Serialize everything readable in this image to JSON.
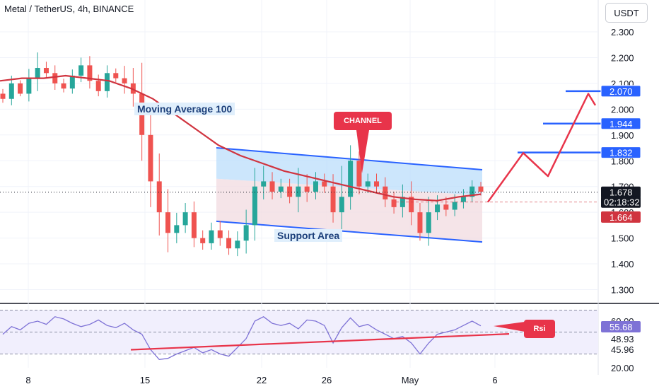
{
  "header": {
    "title": "Metal / TetherUS, 4h, BINANCE",
    "unit_button": "USDT"
  },
  "annotations": {
    "moving_average": "Moving Average 100",
    "channel": "CHANNEL",
    "support": "Support Area",
    "rsi": "Rsi"
  },
  "colors": {
    "up": "#26a69a",
    "down": "#ef5350",
    "ma": "#d0343f",
    "channel": "#2962ff",
    "target": "#2962ff",
    "arrow": "#e8344a",
    "rsi_line": "#7e72d6",
    "rsi_band": "#c9c3f5"
  },
  "chart_data": [
    {
      "type": "candlestick",
      "title": "Metal / TetherUS, 4h, BINANCE",
      "ylim": [
        1.22,
        2.42
      ],
      "y_ticks": [
        "2.300",
        "2.200",
        "2.100",
        "2.000",
        "1.900",
        "1.800",
        "1.700",
        "1.600",
        "1.500",
        "1.400",
        "1.300"
      ],
      "x_ticks": [
        "8",
        "15",
        "22",
        "26",
        "May",
        "6"
      ],
      "price_labels": [
        {
          "text": "2.070",
          "kind": "target"
        },
        {
          "text": "1.944",
          "kind": "target"
        },
        {
          "text": "1.832",
          "kind": "target"
        },
        {
          "text": "1.678",
          "kind": "last"
        },
        {
          "text": "02:18:32",
          "kind": "timer"
        },
        {
          "text": "1.664",
          "kind": "ma"
        }
      ],
      "targets": [
        2.07,
        1.944,
        1.832
      ],
      "last_price": 1.678,
      "ma_value": 1.664,
      "channel": {
        "upper": [
          1.85,
          1.765
        ],
        "lower": [
          1.565,
          1.485
        ]
      },
      "projection": [
        1.64,
        1.83,
        1.74,
        2.06,
        2.015
      ],
      "moving_average_100": [
        2.11,
        2.12,
        2.12,
        2.13,
        2.12,
        2.11,
        2.08,
        2.04,
        1.98,
        1.92,
        1.86,
        1.82,
        1.79,
        1.76,
        1.74,
        1.72,
        1.7,
        1.68,
        1.66,
        1.65,
        1.645,
        1.66,
        1.67
      ],
      "closes": [
        2.04,
        2.1,
        2.06,
        2.12,
        2.16,
        2.14,
        2.1,
        2.08,
        2.13,
        2.17,
        2.11,
        2.07,
        2.14,
        2.12,
        2.1,
        2.06,
        1.9,
        1.72,
        1.6,
        1.52,
        1.55,
        1.6,
        1.5,
        1.48,
        1.53,
        1.5,
        1.46,
        1.49,
        1.55,
        1.7,
        1.72,
        1.68,
        1.7,
        1.66,
        1.7,
        1.68,
        1.72,
        1.7,
        1.6,
        1.66,
        1.8,
        1.7,
        1.72,
        1.7,
        1.65,
        1.62,
        1.66,
        1.6,
        1.52,
        1.6,
        1.63,
        1.61,
        1.64,
        1.66,
        1.7,
        1.68
      ]
    },
    {
      "type": "line",
      "title": "",
      "ylim": [
        20,
        72
      ],
      "y_ticks": [
        "60.00",
        "48.93",
        "45.96",
        "20.00"
      ],
      "value_label": "55.68",
      "levels": [
        70,
        50,
        30
      ],
      "trendline": [
        30,
        47
      ],
      "values": [
        48,
        55,
        52,
        58,
        60,
        57,
        64,
        62,
        58,
        55,
        57,
        61,
        56,
        54,
        58,
        52,
        48,
        34,
        25,
        26,
        30,
        33,
        36,
        31,
        34,
        30,
        28,
        36,
        44,
        60,
        64,
        58,
        56,
        58,
        53,
        61,
        60,
        56,
        40,
        54,
        63,
        55,
        57,
        52,
        48,
        44,
        46,
        40,
        30,
        40,
        48,
        50,
        52,
        56,
        60,
        55.7
      ]
    }
  ]
}
